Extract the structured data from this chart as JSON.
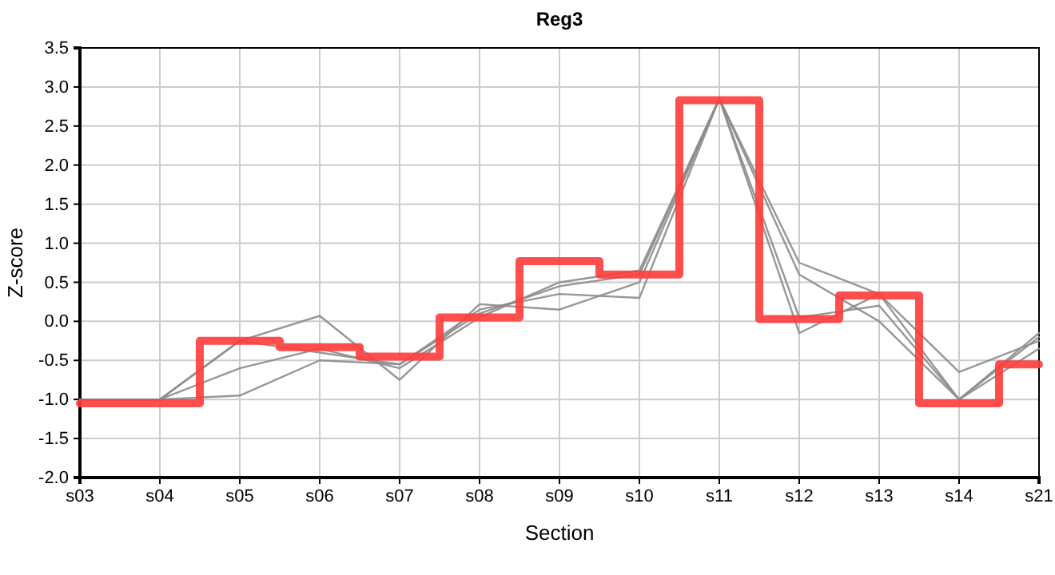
{
  "chart_data": {
    "type": "line",
    "title": "Reg3",
    "xlabel": "Section",
    "ylabel": "Z-score",
    "categories": [
      "s03",
      "s04",
      "s05",
      "s06",
      "s07",
      "s08",
      "s09",
      "s10",
      "s11",
      "s12",
      "s13",
      "s14",
      "s21"
    ],
    "ylim": [
      -2,
      3.5
    ],
    "yticks": [
      {
        "value": -2,
        "label": "-2.0"
      },
      -1.5,
      {
        "value": -1,
        "label": "-1.0"
      },
      -0.5,
      {
        "value": 0,
        "label": "0.0"
      },
      0.5,
      {
        "value": 1,
        "label": "1.0"
      },
      1.5,
      {
        "value": 2,
        "label": "2.0"
      },
      2.5,
      {
        "value": 3,
        "label": "3.0"
      },
      3.5
    ],
    "grid": true,
    "marker": "none",
    "line_style": "solid",
    "series": [
      {
        "color": "#8c8c8c",
        "values": [
          -1.0,
          -1.0,
          -0.25,
          0.07,
          -0.75,
          0.22,
          0.15,
          0.5,
          2.85,
          0.75,
          0.35,
          -0.65,
          -0.25
        ]
      },
      {
        "color": "#8c8c8c",
        "values": [
          -1.0,
          -1.0,
          -0.95,
          -0.5,
          -0.55,
          0.1,
          0.45,
          0.6,
          2.85,
          -0.15,
          0.35,
          -1.0,
          -0.15
        ]
      },
      {
        "color": "#8c8c8c",
        "values": [
          -1.0,
          -1.0,
          -0.6,
          -0.35,
          -0.6,
          0.05,
          0.5,
          0.65,
          2.85,
          0.05,
          0.2,
          -1.0,
          -0.2
        ]
      },
      {
        "color": "#8c8c8c",
        "values": [
          -1.0,
          -1.0,
          -0.25,
          -0.4,
          -0.55,
          0.15,
          0.35,
          0.3,
          2.85,
          0.6,
          0.0,
          -1.0,
          -0.35
        ]
      },
      {
        "type": "step",
        "color": "#ff3b3b",
        "values": [
          -1.05,
          -1.05,
          -0.25,
          -0.33,
          -0.45,
          0.05,
          0.77,
          0.6,
          2.83,
          0.03,
          0.33,
          -1.05,
          -0.55
        ]
      }
    ]
  }
}
